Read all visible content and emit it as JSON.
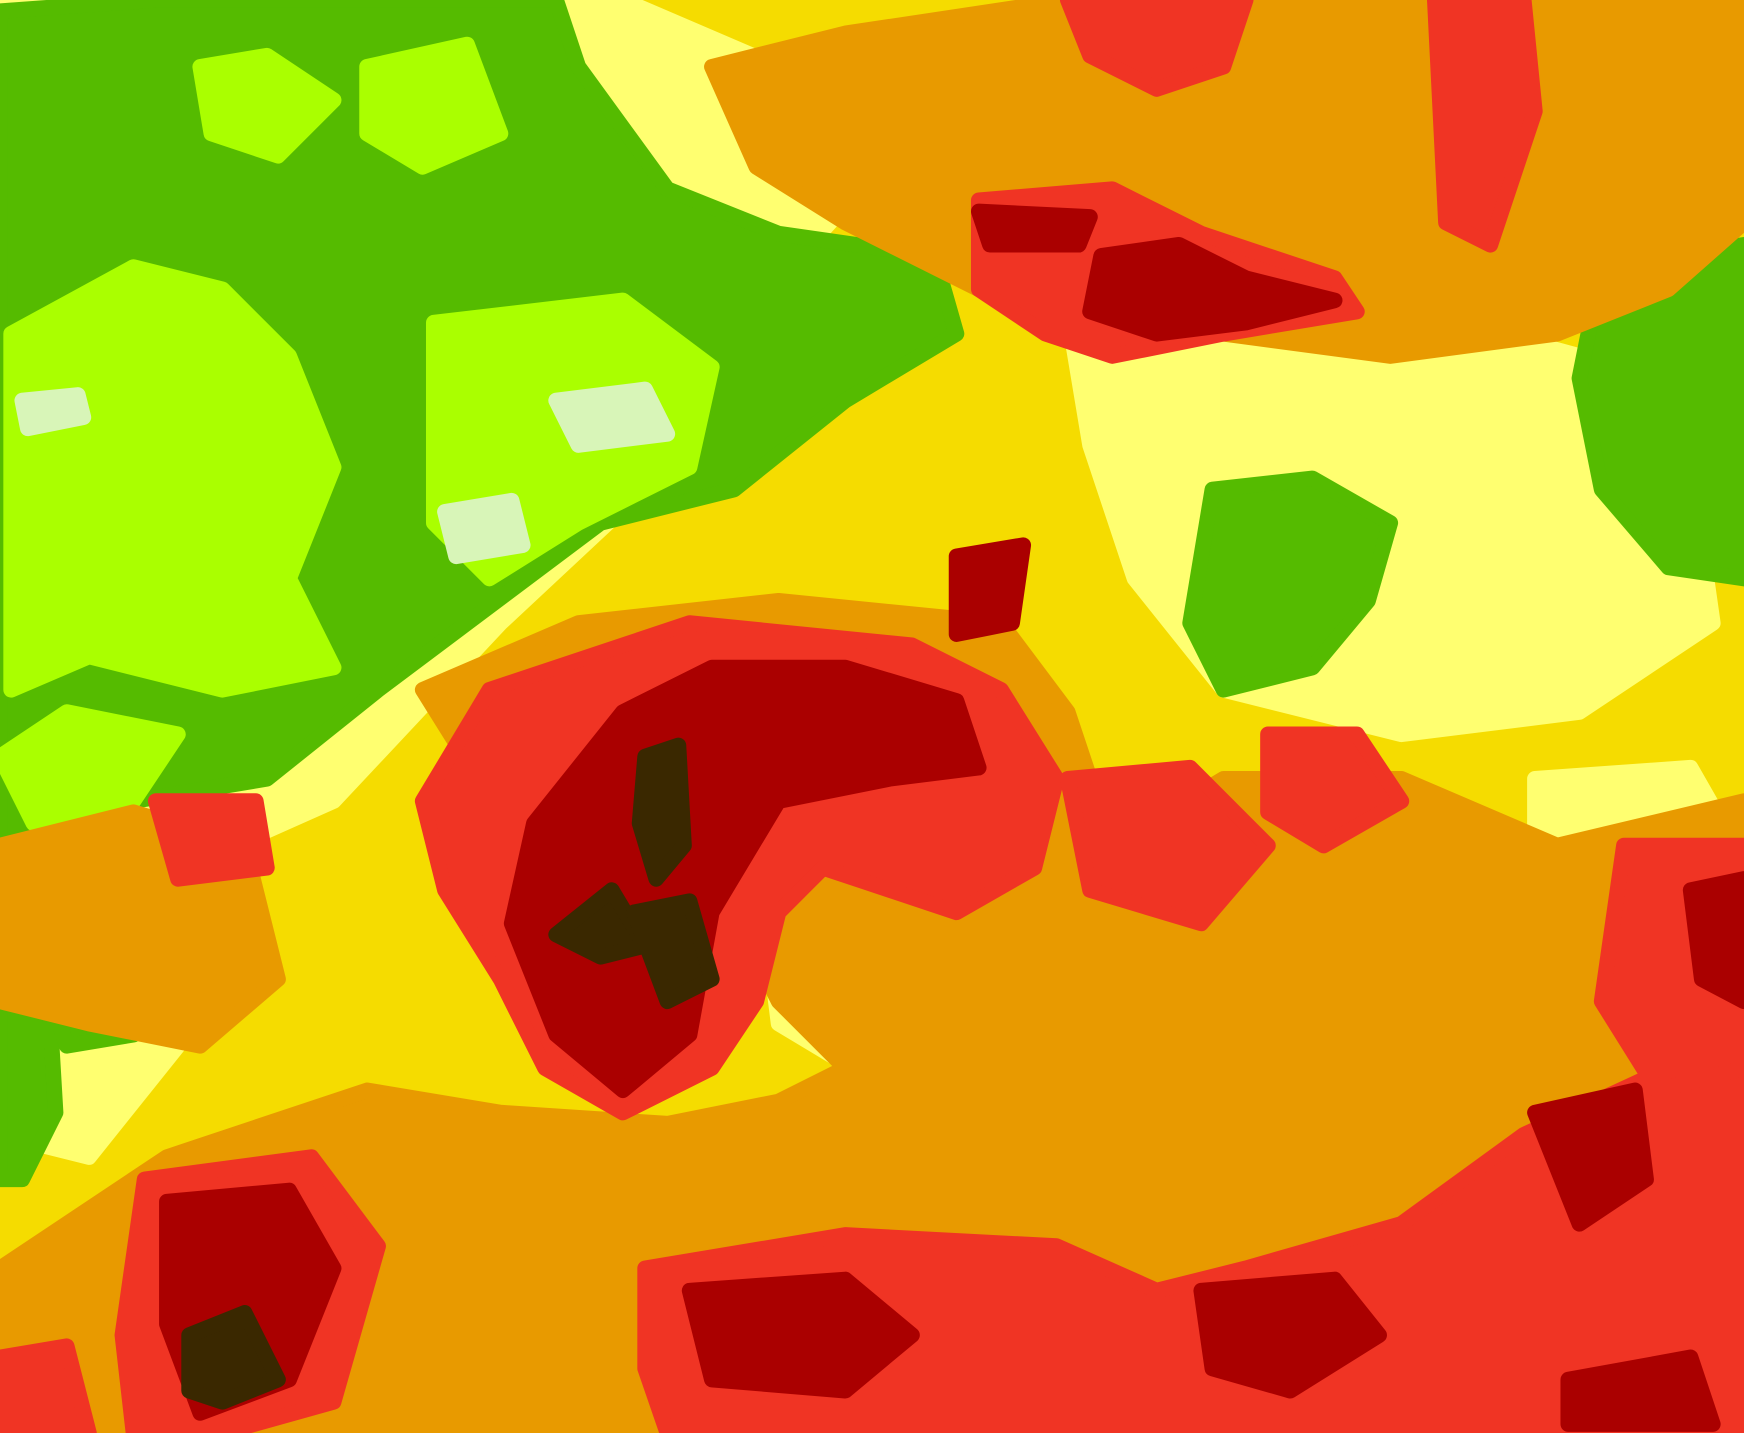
{
  "map": {
    "type": "classified raster contour map",
    "classes": [
      {
        "level": 1,
        "color": "#d8f5b8"
      },
      {
        "level": 2,
        "color": "#aaff00"
      },
      {
        "level": 3,
        "color": "#55bb00"
      },
      {
        "level": 4,
        "color": "#ffff70"
      },
      {
        "level": 5,
        "color": "#f5dc00"
      },
      {
        "level": 6,
        "color": "#e89a00"
      },
      {
        "level": 7,
        "color": "#f03424"
      },
      {
        "level": 8,
        "color": "#aa0000"
      },
      {
        "level": 9,
        "color": "#3a2800"
      }
    ]
  }
}
